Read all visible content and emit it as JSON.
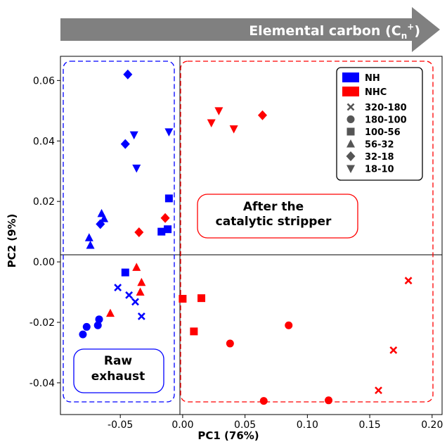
{
  "chart_data": {
    "type": "scatter",
    "title": "",
    "xlabel": "PC1 (76%)",
    "ylabel": "PC2 (9%)",
    "xlim": [
      -0.098,
      0.208
    ],
    "ylim": [
      -0.0505,
      0.068
    ],
    "xticks": [
      -0.05,
      0.0,
      0.05,
      0.1,
      0.15,
      0.2
    ],
    "xtick_labels": [
      "-0.05",
      "0.00",
      "0.05",
      "0.10",
      "0.15",
      "0.20"
    ],
    "yticks": [
      -0.04,
      -0.02,
      0.0,
      0.02,
      0.04,
      0.06
    ],
    "ytick_labels": [
      "-0.04",
      "-0.02",
      "0.00",
      "0.02",
      "0.04",
      "0.06"
    ],
    "grid": false,
    "legend_position": "top-right",
    "arrow_label": "Elemental carbon (C",
    "arrow_label_sub": "n",
    "arrow_label_sup": "+",
    "arrow_label_end": ")",
    "annotations": {
      "after_line1": "After the",
      "after_line2": "catalytic stripper",
      "raw_line1": "Raw",
      "raw_line2": "exhaust"
    },
    "colors": {
      "NH": "#0000ff",
      "NHC": "#ff0000"
    },
    "legend": {
      "groups": [
        {
          "name": "NH",
          "color": "#0000ff"
        },
        {
          "name": "NHC",
          "color": "#ff0000"
        }
      ],
      "sizes": [
        {
          "name": "320-180",
          "marker": "x"
        },
        {
          "name": "180-100",
          "marker": "circle"
        },
        {
          "name": "100-56",
          "marker": "square"
        },
        {
          "name": "56-32",
          "marker": "triangle-up"
        },
        {
          "name": "32-18",
          "marker": "diamond"
        },
        {
          "name": "18-10",
          "marker": "triangle-down"
        }
      ]
    },
    "series": [
      {
        "group": "NH",
        "size": "320-180",
        "marker": "x",
        "color": "#0000ff",
        "points": [
          [
            -0.052,
            -0.0085
          ],
          [
            -0.043,
            -0.011
          ],
          [
            -0.038,
            -0.0132
          ],
          [
            -0.033,
            -0.018
          ]
        ]
      },
      {
        "group": "NH",
        "size": "180-100",
        "marker": "circle",
        "color": "#0000ff",
        "points": [
          [
            -0.08,
            -0.024
          ],
          [
            -0.077,
            -0.0215
          ],
          [
            -0.068,
            -0.021
          ],
          [
            -0.067,
            -0.019
          ]
        ]
      },
      {
        "group": "NH",
        "size": "100-56",
        "marker": "square",
        "color": "#0000ff",
        "points": [
          [
            -0.046,
            -0.0035
          ],
          [
            -0.017,
            0.01
          ],
          [
            -0.012,
            0.0108
          ],
          [
            -0.011,
            0.021
          ]
        ]
      },
      {
        "group": "NH",
        "size": "56-32",
        "marker": "triangle-up",
        "color": "#0000ff",
        "points": [
          [
            -0.075,
            0.008
          ],
          [
            -0.074,
            0.0055
          ],
          [
            -0.065,
            0.016
          ],
          [
            -0.063,
            0.0143
          ]
        ]
      },
      {
        "group": "NH",
        "size": "32-18",
        "marker": "diamond",
        "color": "#0000ff",
        "points": [
          [
            -0.066,
            0.0125
          ],
          [
            -0.046,
            0.039
          ],
          [
            -0.044,
            0.062
          ]
        ]
      },
      {
        "group": "NH",
        "size": "18-10",
        "marker": "triangle-down",
        "color": "#0000ff",
        "points": [
          [
            -0.039,
            0.042
          ],
          [
            -0.037,
            0.031
          ],
          [
            -0.011,
            0.043
          ]
        ]
      },
      {
        "group": "NHC",
        "size": "320-180",
        "marker": "x",
        "color": "#ff0000",
        "points": [
          [
            0.157,
            -0.0425
          ],
          [
            0.169,
            -0.0292
          ],
          [
            0.181,
            -0.0062
          ]
        ]
      },
      {
        "group": "NHC",
        "size": "180-100",
        "marker": "circle",
        "color": "#ff0000",
        "points": [
          [
            0.038,
            -0.027
          ],
          [
            0.065,
            -0.046
          ],
          [
            0.085,
            -0.021
          ],
          [
            0.117,
            -0.0458
          ]
        ]
      },
      {
        "group": "NHC",
        "size": "100-56",
        "marker": "square",
        "color": "#ff0000",
        "points": [
          [
            0.0,
            -0.0122
          ],
          [
            0.009,
            -0.023
          ],
          [
            0.015,
            -0.012
          ]
        ]
      },
      {
        "group": "NHC",
        "size": "56-32",
        "marker": "triangle-up",
        "color": "#ff0000",
        "points": [
          [
            -0.058,
            -0.017
          ],
          [
            -0.037,
            -0.0018
          ],
          [
            -0.034,
            -0.01
          ],
          [
            -0.033,
            -0.0068
          ]
        ]
      },
      {
        "group": "NHC",
        "size": "32-18",
        "marker": "diamond",
        "color": "#ff0000",
        "points": [
          [
            -0.035,
            0.0098
          ],
          [
            -0.014,
            0.0145
          ],
          [
            0.064,
            0.0485
          ]
        ]
      },
      {
        "group": "NHC",
        "size": "18-10",
        "marker": "triangle-down",
        "color": "#ff0000",
        "points": [
          [
            0.023,
            0.046
          ],
          [
            0.029,
            0.05
          ],
          [
            0.041,
            0.044
          ]
        ]
      }
    ]
  }
}
